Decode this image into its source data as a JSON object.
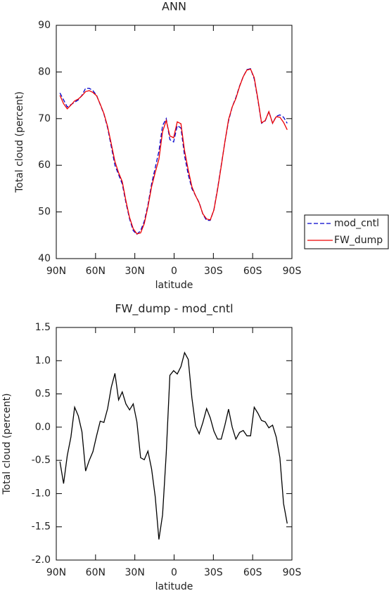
{
  "chart_data": [
    {
      "type": "line",
      "title": "ANN",
      "xlabel": "latitude",
      "ylabel": "Total cloud (percent)",
      "xlim": [
        90,
        -90
      ],
      "xticks": [
        {
          "value": 90,
          "label": "90N"
        },
        {
          "value": 60,
          "label": "60N"
        },
        {
          "value": 30,
          "label": "30N"
        },
        0,
        {
          "value": -30,
          "label": "30S"
        },
        {
          "value": -60,
          "label": "60S"
        },
        {
          "value": -90,
          "label": "90S"
        }
      ],
      "ylim": [
        40,
        90
      ],
      "yticks": [
        40,
        50,
        60,
        70,
        80,
        90
      ],
      "legend": "outside-right",
      "x": [
        87.2,
        84.4,
        81.6,
        78.8,
        76,
        73.2,
        70.4,
        67.6,
        64.8,
        62,
        59.2,
        56.4,
        53.6,
        50.8,
        48,
        45.2,
        42.4,
        39.6,
        36.8,
        34,
        31.2,
        28.4,
        25.6,
        22.8,
        20,
        17.2,
        14.4,
        11.6,
        8.8,
        6,
        3.2,
        0.4,
        -2.4,
        -5.2,
        -8,
        -10.8,
        -13.6,
        -16.4,
        -19.2,
        -22,
        -24.8,
        -27.6,
        -30.4,
        -33.2,
        -36,
        -38.8,
        -41.6,
        -44.4,
        -47.2,
        -50,
        -52.8,
        -55.6,
        -58.4,
        -61.2,
        -64,
        -66.8,
        -69.6,
        -72.4,
        -75.2,
        -78,
        -80.8,
        -83.6,
        -86.4
      ],
      "series": [
        {
          "name": "mod_cntl",
          "color": "#0000cc",
          "line_style": "dashed",
          "values": [
            75.5,
            74,
            72.5,
            73,
            73.5,
            74,
            75,
            76.5,
            76.5,
            76,
            75,
            73,
            71,
            68,
            64,
            60,
            58,
            56,
            52,
            48.5,
            46,
            45.2,
            46,
            48,
            51.5,
            56,
            59.5,
            63,
            68.5,
            70,
            65.5,
            65,
            68.5,
            68,
            62,
            58,
            55,
            53.5,
            52,
            49.5,
            48.2,
            48.2,
            50.5,
            55,
            60,
            65,
            69.5,
            72.5,
            74.5,
            77,
            79,
            80.5,
            80.7,
            78.5,
            74,
            69,
            69.5,
            71.5,
            69,
            70.5,
            70.8,
            70.3,
            69
          ]
        },
        {
          "name": "FW_dump",
          "color": "#ee0000",
          "line_style": "solid",
          "values": [
            75.0,
            73.2,
            72.1,
            72.9,
            73.8,
            74.2,
            74.9,
            75.8,
            76.0,
            75.6,
            74.9,
            73.1,
            71.1,
            68.3,
            64.6,
            60.8,
            58.4,
            56.5,
            52.4,
            48.8,
            46.4,
            45.3,
            45.5,
            47.5,
            51.1,
            55.4,
            58.5,
            61.3,
            67.2,
            69.6,
            66.3,
            65.9,
            69.3,
            68.9,
            63.1,
            59.0,
            55.4,
            53.5,
            51.9,
            49.6,
            48.5,
            48.3,
            50.4,
            54.8,
            59.8,
            65.0,
            69.8,
            72.5,
            74.3,
            76.9,
            79.0,
            80.4,
            80.6,
            78.8,
            74.2,
            69.1,
            69.6,
            71.5,
            69.0,
            70.4,
            70.3,
            69.2,
            67.6
          ]
        }
      ]
    },
    {
      "type": "line",
      "title": "FW_dump - mod_cntl",
      "xlabel": "latitude",
      "ylabel": "Total cloud (percent)",
      "xlim": [
        90,
        -90
      ],
      "xticks": [
        {
          "value": 90,
          "label": "90N"
        },
        {
          "value": 60,
          "label": "60N"
        },
        {
          "value": 30,
          "label": "30N"
        },
        0,
        {
          "value": -30,
          "label": "30S"
        },
        {
          "value": -60,
          "label": "60S"
        },
        {
          "value": -90,
          "label": "90S"
        }
      ],
      "ylim": [
        -2,
        1.5
      ],
      "yticks": [
        {
          "value": -2,
          "label": "-2.0"
        },
        -1.5,
        {
          "value": -1,
          "label": "-1.0"
        },
        -0.5,
        {
          "value": 0,
          "label": "0.0"
        },
        0.5,
        {
          "value": 1,
          "label": "1.0"
        },
        1.5
      ],
      "x": [
        87.2,
        84.4,
        81.6,
        78.8,
        76,
        73.2,
        70.4,
        67.6,
        64.8,
        62,
        59.2,
        56.4,
        53.6,
        50.8,
        48,
        45.2,
        42.4,
        39.6,
        36.8,
        34,
        31.2,
        28.4,
        25.6,
        22.8,
        20,
        17.2,
        14.4,
        11.6,
        8.8,
        6,
        3.2,
        0.4,
        -2.4,
        -5.2,
        -8,
        -10.8,
        -13.6,
        -16.4,
        -19.2,
        -22,
        -24.8,
        -27.6,
        -30.4,
        -33.2,
        -36,
        -38.8,
        -41.6,
        -44.4,
        -47.2,
        -50,
        -52.8,
        -55.6,
        -58.4,
        -61.2,
        -64,
        -66.8,
        -69.6,
        -72.4,
        -75.2,
        -78,
        -80.8,
        -83.6,
        -86.4
      ],
      "series": [
        {
          "color": "#000000",
          "line_style": "solid",
          "values": [
            -0.52,
            -0.85,
            -0.43,
            -0.15,
            0.3,
            0.17,
            -0.07,
            -0.66,
            -0.5,
            -0.37,
            -0.13,
            0.09,
            0.07,
            0.28,
            0.6,
            0.81,
            0.41,
            0.53,
            0.35,
            0.26,
            0.35,
            0.08,
            -0.46,
            -0.49,
            -0.36,
            -0.63,
            -1.05,
            -1.69,
            -1.32,
            -0.4,
            0.78,
            0.85,
            0.8,
            0.91,
            1.12,
            1.02,
            0.44,
            0.02,
            -0.1,
            0.07,
            0.28,
            0.14,
            -0.06,
            -0.18,
            -0.18,
            0.03,
            0.27,
            0,
            -0.18,
            -0.08,
            -0.05,
            -0.13,
            -0.13,
            0.3,
            0.21,
            0.1,
            0.08,
            -0.01,
            0.03,
            -0.15,
            -0.46,
            -1.15,
            -1.45
          ]
        }
      ]
    }
  ]
}
